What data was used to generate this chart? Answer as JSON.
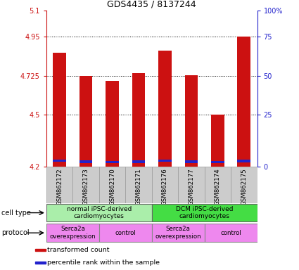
{
  "title": "GDS4435 / 8137244",
  "samples": [
    "GSM862172",
    "GSM862173",
    "GSM862170",
    "GSM862171",
    "GSM862176",
    "GSM862177",
    "GSM862174",
    "GSM862175"
  ],
  "transformed_counts": [
    4.86,
    4.725,
    4.695,
    4.74,
    4.87,
    4.73,
    4.5,
    4.95
  ],
  "percentile_bottom": [
    4.228,
    4.223,
    4.22,
    4.222,
    4.228,
    4.223,
    4.22,
    4.225
  ],
  "percentile_top": [
    4.243,
    4.238,
    4.235,
    4.237,
    4.243,
    4.238,
    4.235,
    4.24
  ],
  "bar_bottom": 4.2,
  "ylim": [
    4.2,
    5.1
  ],
  "yticks": [
    4.2,
    4.5,
    4.725,
    4.95,
    5.1
  ],
  "ytick_labels": [
    "4.2",
    "4.5",
    "4.725",
    "4.95",
    "5.1"
  ],
  "gridlines": [
    4.95,
    4.725,
    4.5
  ],
  "right_ytick_positions": [
    4.2,
    4.5,
    4.725,
    4.95,
    5.1
  ],
  "right_ytick_labels": [
    "0",
    "25",
    "50",
    "75",
    "100%"
  ],
  "bar_color": "#cc1111",
  "percentile_color": "#2222cc",
  "cell_type_groups": [
    {
      "label": "normal iPSC-derived\ncardiomyocytes",
      "start": 0,
      "end": 3,
      "color": "#aaeeaa"
    },
    {
      "label": "DCM iPSC-derived\ncardiomyocytes",
      "start": 4,
      "end": 7,
      "color": "#44dd44"
    }
  ],
  "protocol_groups": [
    {
      "label": "Serca2a\noverexpression",
      "start": 0,
      "end": 1,
      "color": "#ee88ee"
    },
    {
      "label": "control",
      "start": 2,
      "end": 3,
      "color": "#ee88ee"
    },
    {
      "label": "Serca2a\noverexpression",
      "start": 4,
      "end": 5,
      "color": "#ee88ee"
    },
    {
      "label": "control",
      "start": 6,
      "end": 7,
      "color": "#ee88ee"
    }
  ],
  "cell_type_label": "cell type",
  "protocol_label": "protocol",
  "legend_items": [
    {
      "label": "transformed count",
      "color": "#cc1111"
    },
    {
      "label": "percentile rank within the sample",
      "color": "#2222cc"
    }
  ],
  "tick_label_color_left": "#cc1111",
  "tick_label_color_right": "#2222cc",
  "bar_width": 0.5,
  "sample_bg_color": "#cccccc",
  "sample_border_color": "#999999"
}
